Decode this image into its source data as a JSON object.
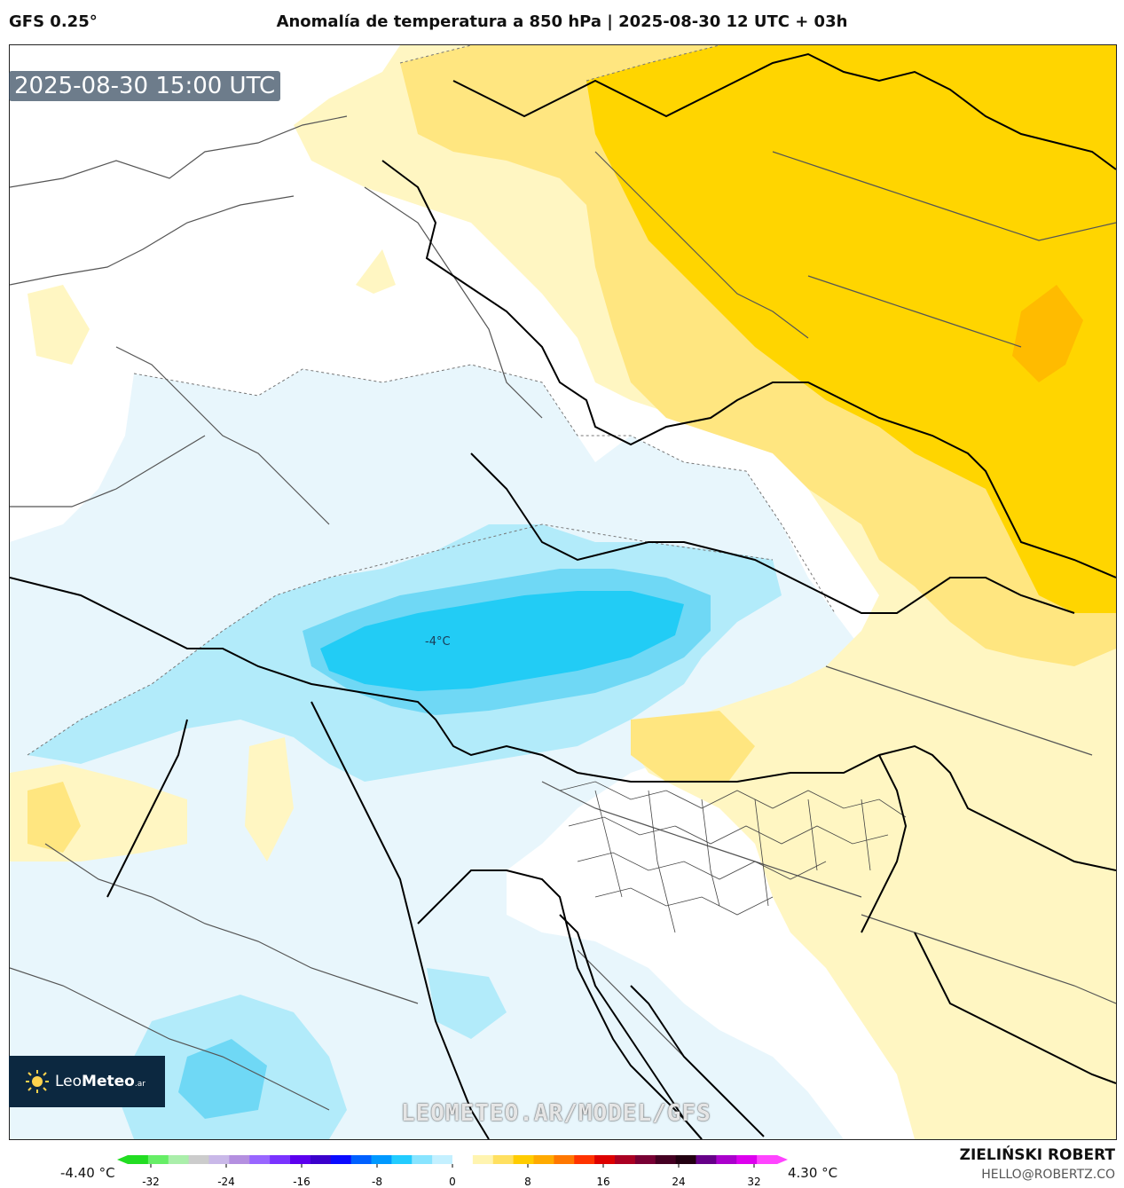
{
  "header": {
    "model": "GFS 0.25°",
    "title": "Anomalía de temperatura a 850 hPa | 2025-08-30 12 UTC + 03h"
  },
  "map": {
    "valid_time": "2025-08-30 15:00 UTC",
    "contour_label": "-4°C",
    "watermark": "LEOMETEO.AR/MODEL/GFS"
  },
  "logo": {
    "prefix": "Leo",
    "suffix": "Meteo",
    "tld": ".ar"
  },
  "legend": {
    "min_label": "-4.40 °C",
    "max_label": "4.30 °C",
    "ticks": [
      "-32",
      "-24",
      "-16",
      "-8",
      "0",
      "8",
      "16",
      "24",
      "32"
    ],
    "colors": [
      "#22dd22",
      "#66ee66",
      "#aaeeaa",
      "#cccccc",
      "#c9b8e8",
      "#b48fe0",
      "#9966ff",
      "#7a33ff",
      "#5b00ee",
      "#3a00cc",
      "#0a0aff",
      "#0060ff",
      "#0099ff",
      "#22ccff",
      "#88e4ff",
      "#c4f0ff",
      "#ffffff",
      "#fff4b0",
      "#ffe060",
      "#ffcc00",
      "#ffaa00",
      "#ff7700",
      "#ff3300",
      "#dd0000",
      "#aa0022",
      "#770033",
      "#440022",
      "#220011",
      "#660088",
      "#aa00cc",
      "#dd00ee",
      "#ff44ff"
    ]
  },
  "author": {
    "name": "ZIELIŃSKI ROBERT",
    "email": "HELLO@ROBERTZ.CO"
  },
  "field_colors": {
    "neg_light": "#e8f6fc",
    "neg_mid": "#b2ebfa",
    "neg_strong": "#6fd8f5",
    "neg_core": "#22ccf5",
    "pos_light": "#fff6c2",
    "pos_mid": "#ffe680",
    "pos_strong": "#ffd500",
    "pos_core": "#ffbb00"
  }
}
